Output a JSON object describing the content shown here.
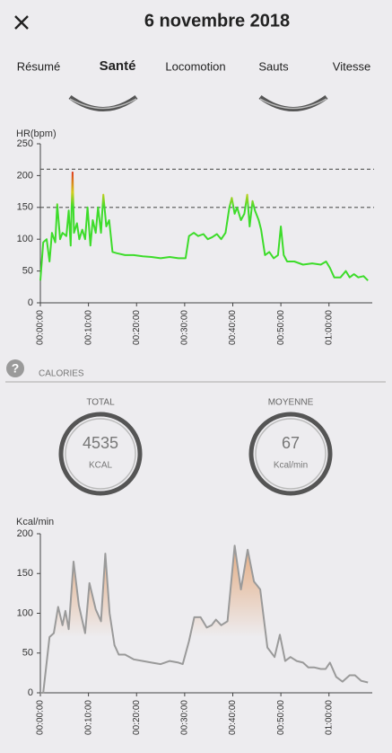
{
  "header": {
    "title": "6 novembre 2018"
  },
  "tabs": [
    "Résumé",
    "Santé",
    "Locomotion",
    "Sauts",
    "Vitesse"
  ],
  "active_tab": 1,
  "calories": {
    "help_icon": "?",
    "section": "CALORIES",
    "total": {
      "label": "TOTAL",
      "value": 4535,
      "unit": "KCAL"
    },
    "average": {
      "label": "MOYENNE",
      "value": 67,
      "unit": "Kcal/min"
    }
  },
  "chart_data": [
    {
      "type": "line",
      "y_label": "HR(bpm)",
      "x": [
        0,
        0.6,
        1.3,
        1.9,
        2.4,
        3.1,
        3.5,
        4.1,
        4.6,
        5.4,
        5.9,
        6.3,
        6.7,
        7.0,
        7.6,
        8.1,
        8.7,
        9.3,
        9.8,
        10.4,
        10.9,
        11.5,
        12.0,
        12.6,
        13.1,
        13.7,
        14.3,
        15.0,
        15.9,
        17.6,
        19.4,
        21.3,
        23.1,
        25.0,
        26.9,
        28.7,
        30.2,
        30.9,
        31.9,
        32.8,
        33.9,
        34.8,
        35.7,
        36.7,
        37.6,
        38.5,
        39.3,
        39.8,
        40.4,
        40.9,
        41.7,
        42.4,
        43.0,
        43.5,
        44.1,
        44.6,
        45.4,
        45.9,
        46.7,
        47.6,
        48.5,
        49.4,
        50.0,
        50.6,
        51.3,
        52.8,
        54.6,
        56.5,
        58.3,
        59.4,
        60.2,
        61.1,
        62.4,
        63.5,
        64.3,
        65.2,
        66.1,
        67.2,
        68.1
      ],
      "values": [
        35,
        95,
        100,
        65,
        110,
        95,
        155,
        100,
        110,
        105,
        145,
        90,
        205,
        110,
        125,
        100,
        115,
        100,
        150,
        90,
        130,
        110,
        150,
        110,
        170,
        120,
        130,
        80,
        78,
        75,
        75,
        73,
        72,
        70,
        72,
        70,
        70,
        105,
        110,
        105,
        108,
        100,
        103,
        108,
        100,
        110,
        150,
        165,
        140,
        150,
        130,
        140,
        170,
        120,
        160,
        145,
        130,
        115,
        75,
        80,
        70,
        75,
        120,
        75,
        65,
        65,
        60,
        62,
        60,
        65,
        55,
        40,
        40,
        50,
        40,
        45,
        40,
        42,
        35
      ],
      "color": "#3ddc2a",
      "warn_color": "#d4cc1e",
      "alert_color": "#e0261b",
      "hlines": [
        210,
        150
      ],
      "xlim": [
        0,
        69
      ],
      "ylim": [
        0,
        250
      ],
      "yticks": [
        0,
        50,
        100,
        150,
        200,
        250
      ],
      "xticks": [
        {
          "value": 0,
          "label": "00:00:00"
        },
        {
          "value": 10,
          "label": "00:10:00"
        },
        {
          "value": 20,
          "label": "00:20:00"
        },
        {
          "value": 30,
          "label": "00:30:00"
        },
        {
          "value": 40,
          "label": "00:40:00"
        },
        {
          "value": 50,
          "label": "00:50:00"
        },
        {
          "value": 60,
          "label": "01:00:00"
        }
      ]
    },
    {
      "type": "area",
      "y_label": "Kcal/min",
      "x": [
        0,
        0.6,
        1.9,
        2.8,
        3.7,
        4.6,
        5.2,
        5.9,
        6.9,
        8.0,
        9.3,
        10.2,
        11.5,
        12.6,
        13.5,
        14.4,
        15.4,
        16.3,
        17.6,
        19.4,
        21.3,
        23.1,
        25.0,
        26.9,
        28.7,
        29.6,
        30.9,
        32.0,
        33.3,
        34.6,
        35.6,
        36.5,
        37.6,
        38.9,
        40.4,
        41.7,
        43.1,
        44.4,
        45.7,
        47.2,
        48.7,
        49.8,
        50.9,
        52.0,
        53.3,
        54.6,
        55.7,
        56.9,
        58.3,
        59.3,
        60.2,
        61.5,
        62.8,
        64.3,
        65.4,
        66.7,
        68.1
      ],
      "values": [
        0,
        0,
        70,
        75,
        108,
        85,
        103,
        80,
        165,
        110,
        75,
        138,
        105,
        90,
        175,
        100,
        60,
        48,
        48,
        42,
        40,
        38,
        36,
        40,
        38,
        36,
        65,
        95,
        95,
        82,
        85,
        92,
        85,
        90,
        185,
        130,
        180,
        140,
        130,
        57,
        45,
        73,
        40,
        45,
        40,
        38,
        32,
        32,
        30,
        30,
        38,
        20,
        14,
        22,
        22,
        15,
        13
      ],
      "color": "#9a9a9a",
      "fill_color": "#e2a06e",
      "xlim": [
        0,
        69
      ],
      "ylim": [
        0,
        200
      ],
      "yticks": [
        0,
        50,
        100,
        150,
        200
      ],
      "xticks": [
        {
          "value": 0,
          "label": "00:00:00"
        },
        {
          "value": 10,
          "label": "00:10:00"
        },
        {
          "value": 20,
          "label": "00:20:00"
        },
        {
          "value": 30,
          "label": "00:30:00"
        },
        {
          "value": 40,
          "label": "00:40:00"
        },
        {
          "value": 50,
          "label": "00:50:00"
        },
        {
          "value": 60,
          "label": "01:00:00"
        }
      ]
    }
  ]
}
